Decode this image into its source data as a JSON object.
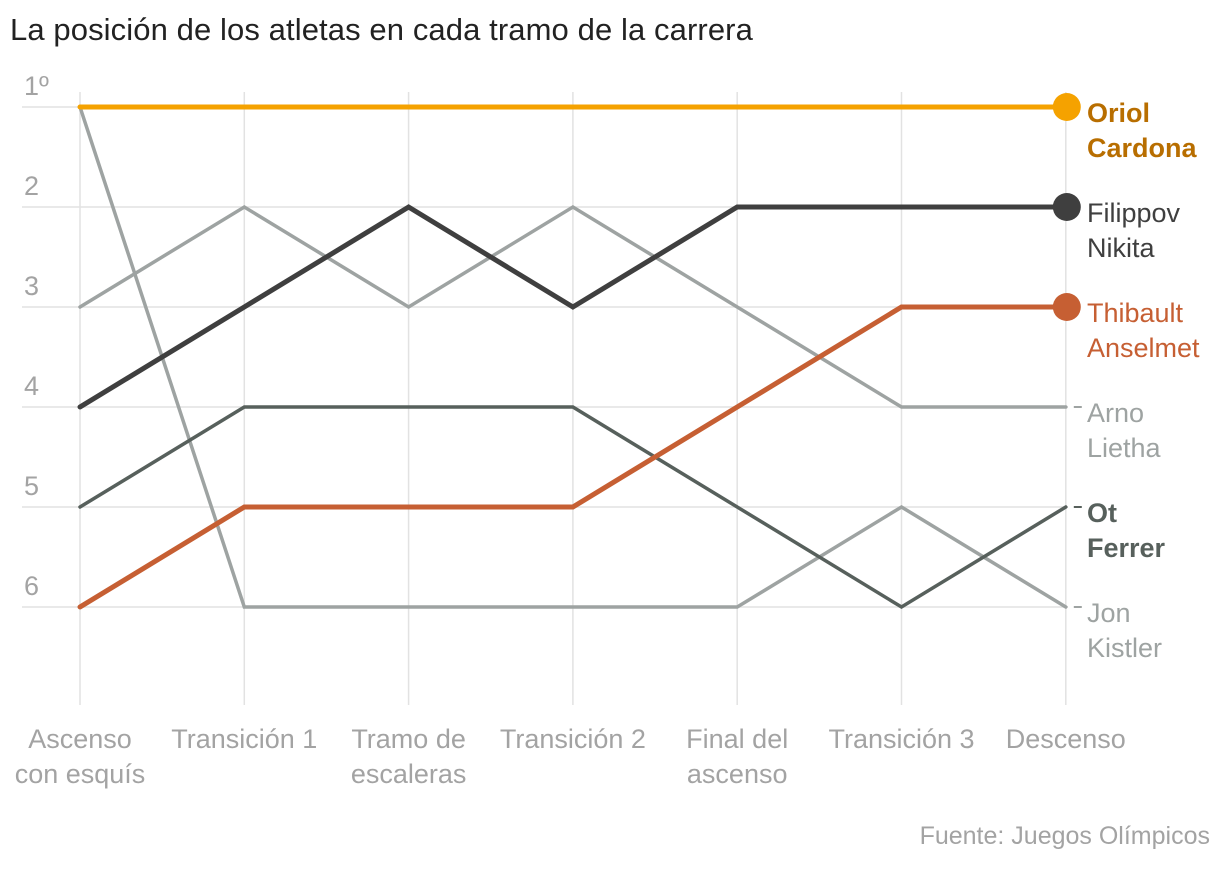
{
  "title": "La posición de los atletas en cada tramo de la carrera",
  "source": "Fuente: Juegos Olímpicos",
  "chart_data": {
    "type": "line",
    "title": "La posición de los atletas en cada tramo de la carrera",
    "xlabel": "",
    "ylabel": "",
    "ylim": [
      1,
      7
    ],
    "y_inverted": true,
    "grid": true,
    "y_ticks": [
      "1º",
      "2",
      "3",
      "4",
      "5",
      "6"
    ],
    "categories": [
      [
        "Ascenso",
        "con esquís"
      ],
      [
        "Transición 1"
      ],
      [
        "Tramo de",
        "escaleras"
      ],
      [
        "Transición 2"
      ],
      [
        "Final del",
        "ascenso"
      ],
      [
        "Transición 3"
      ],
      [
        "Descenso"
      ]
    ],
    "series": [
      {
        "name": "Jon Kistler",
        "label_lines": [
          "Jon",
          "Kistler"
        ],
        "values": [
          1,
          6,
          6,
          6,
          6,
          5,
          6
        ],
        "color": "#9ea3a2",
        "highlight": false,
        "end_marker": false
      },
      {
        "name": "Arno Lietha",
        "label_lines": [
          "Arno",
          "Lietha"
        ],
        "values": [
          3,
          2,
          3,
          2,
          3,
          4,
          4
        ],
        "color": "#9ea3a2",
        "highlight": false,
        "end_marker": false
      },
      {
        "name": "Ot Ferrer",
        "label_lines": [
          "Ot",
          "Ferrer"
        ],
        "values": [
          5,
          4,
          4,
          4,
          5,
          6,
          5
        ],
        "color": "#57605c",
        "highlight": true,
        "end_marker": false
      },
      {
        "name": "Thibault Anselmet",
        "label_lines": [
          "Thibault",
          "Anselmet"
        ],
        "values": [
          6,
          5,
          5,
          5,
          4,
          3,
          3
        ],
        "color": "#c65f33",
        "highlight": false,
        "end_marker": true
      },
      {
        "name": "Filippov Nikita",
        "label_lines": [
          "Filippov",
          "Nikita"
        ],
        "values": [
          4,
          3,
          2,
          3,
          2,
          2,
          2
        ],
        "color": "#3f3f3f",
        "highlight": false,
        "end_marker": true
      },
      {
        "name": "Oriol Cardona",
        "label_lines": [
          "Oriol",
          "Cardona"
        ],
        "values": [
          1,
          1,
          1,
          1,
          1,
          1,
          1
        ],
        "color": "#f5a200",
        "label_color": "#b86e00",
        "highlight": true,
        "end_marker": true
      }
    ]
  }
}
